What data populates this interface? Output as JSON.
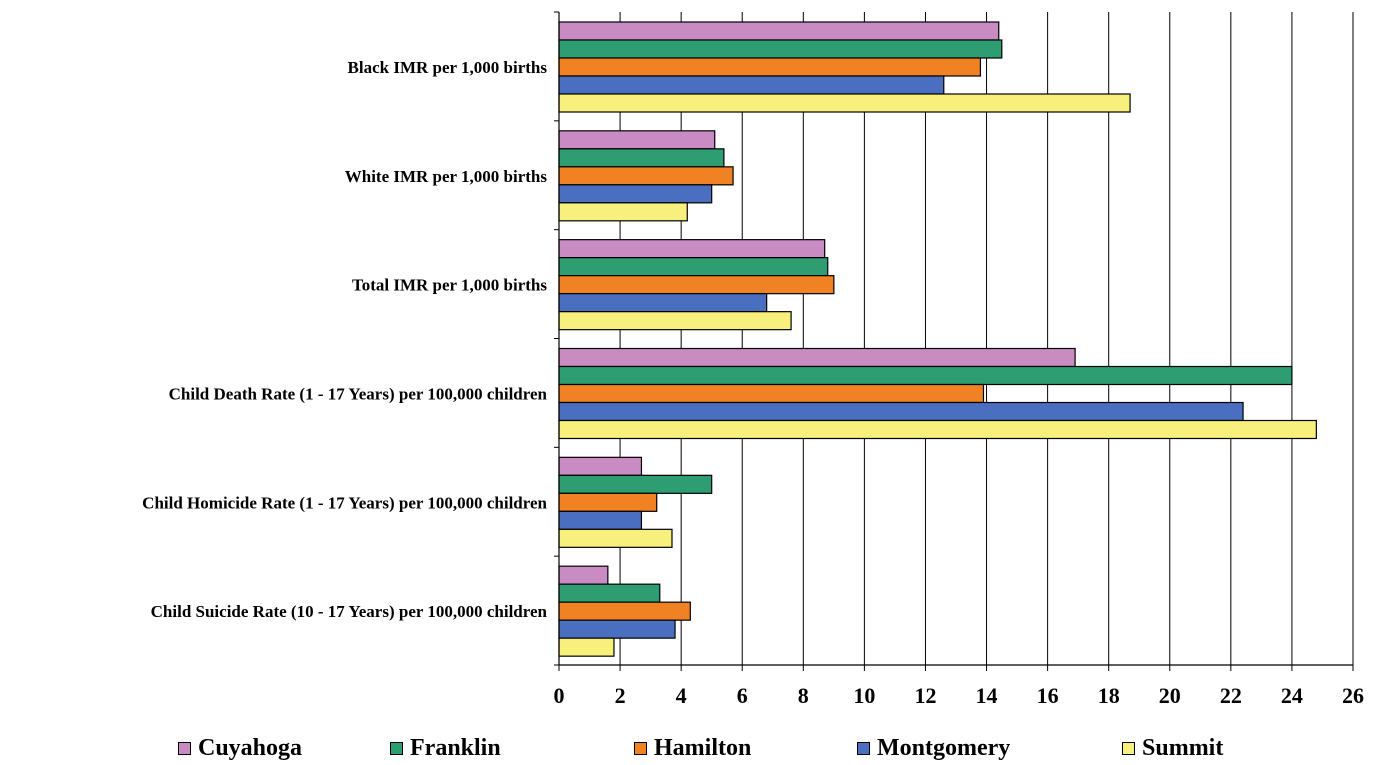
{
  "chart_data": {
    "type": "bar",
    "orientation": "horizontal",
    "title": "",
    "xlabel": "",
    "ylabel": "",
    "xlim": [
      0,
      26
    ],
    "x_ticks": [
      "0",
      "2",
      "4",
      "6",
      "8",
      "10",
      "12",
      "14",
      "16",
      "18",
      "20",
      "22",
      "24",
      "26"
    ],
    "grid": "vertical",
    "legend_position": "bottom",
    "categories": [
      "Black IMR per 1,000 births",
      "White IMR per 1,000 births",
      "Total IMR per 1,000 births",
      "Child Death Rate (1 - 17 Years) per 100,000 children",
      "Child Homicide Rate (1 - 17 Years) per 100,000 children",
      "Child Suicide Rate (10 - 17 Years) per 100,000 children"
    ],
    "series": [
      {
        "name": "Cuyahoga",
        "color": "#c88cc3",
        "values": [
          14.4,
          5.1,
          8.7,
          16.9,
          2.7,
          1.6
        ]
      },
      {
        "name": "Franklin",
        "color": "#2e9e72",
        "values": [
          14.5,
          5.4,
          8.8,
          24.0,
          5.0,
          3.3
        ]
      },
      {
        "name": "Hamilton",
        "color": "#f08224",
        "values": [
          13.8,
          5.7,
          9.0,
          13.9,
          3.2,
          4.3
        ]
      },
      {
        "name": "Montgomery",
        "color": "#4a6fc0",
        "values": [
          12.6,
          5.0,
          6.8,
          22.4,
          2.7,
          3.8
        ]
      },
      {
        "name": "Summit",
        "color": "#f8f07c",
        "values": [
          18.7,
          4.2,
          7.6,
          24.8,
          3.7,
          1.8
        ]
      }
    ]
  }
}
